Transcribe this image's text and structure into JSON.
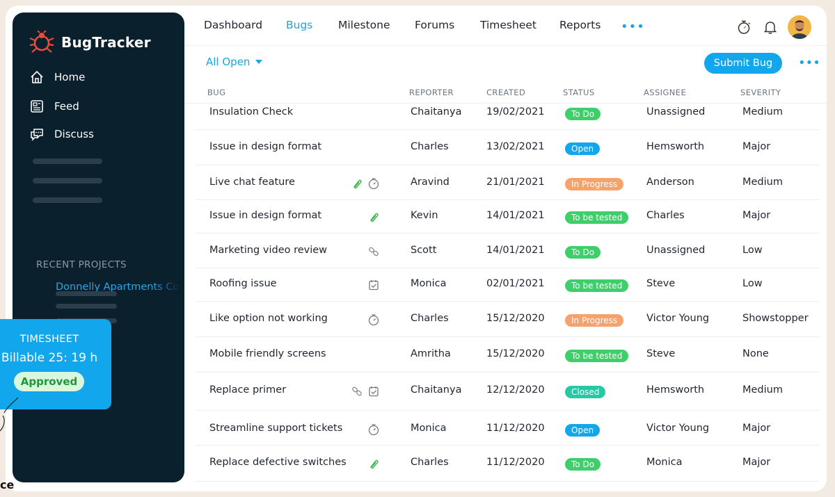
{
  "sidebar": {
    "brand": "BugTracker",
    "nav": [
      {
        "label": "Home",
        "icon": "home-icon"
      },
      {
        "label": "Feed",
        "icon": "feed-icon"
      },
      {
        "label": "Discuss",
        "icon": "discuss-icon"
      }
    ],
    "recent_title": "RECENT PROJECTS",
    "recent_projects": [
      "Donnelly Apartments Co"
    ]
  },
  "timesheet": {
    "title": "TIMESHEET",
    "billable": "Billable  25: 19 h",
    "status": "Approved"
  },
  "topnav": {
    "tabs": [
      "Dashboard",
      "Bugs",
      "Milestone",
      "Forums",
      "Timesheet",
      "Reports"
    ],
    "active_tab": "Bugs",
    "more": "•••"
  },
  "toolbar": {
    "filter": "All Open",
    "submit": "Submit Bug",
    "more": "•••"
  },
  "table": {
    "headers": [
      "BUG",
      "REPORTER",
      "CREATED",
      "STATUS",
      "ASSIGNEE",
      "SEVERITY"
    ],
    "rows": [
      {
        "bug": "Insulation Check",
        "reporter": "Chaitanya",
        "created": "19/02/2021",
        "status": "To Do",
        "assignee": "Unassigned",
        "severity": "Medium",
        "icons": []
      },
      {
        "bug": "Issue in design format",
        "reporter": "Charles",
        "created": "13/02/2021",
        "status": "Open",
        "assignee": "Hemsworth",
        "severity": "Major",
        "icons": []
      },
      {
        "bug": "Live chat feature",
        "reporter": "Aravind",
        "created": "21/01/2021",
        "status": "In Progress",
        "assignee": "Anderson",
        "severity": "Medium",
        "icons": [
          "attachment-icon",
          "timer-icon"
        ]
      },
      {
        "bug": "Issue in design format",
        "reporter": "Kevin",
        "created": "14/01/2021",
        "status": "To be tested",
        "assignee": "Charles",
        "severity": "Major",
        "icons": [
          "attachment-icon"
        ]
      },
      {
        "bug": "Marketing video review",
        "reporter": "Scott",
        "created": "14/01/2021",
        "status": "To Do",
        "assignee": "Unassigned",
        "severity": "Low",
        "icons": [
          "link-icon"
        ]
      },
      {
        "bug": "Roofing issue",
        "reporter": "Monica",
        "created": "02/01/2021",
        "status": "To be tested",
        "assignee": "Steve",
        "severity": "Low",
        "icons": [
          "task-icon"
        ]
      },
      {
        "bug": "Like option not working",
        "reporter": "Charles",
        "created": "15/12/2020",
        "status": "In Progress",
        "assignee": "Victor Young",
        "severity": "Showstopper",
        "icons": [
          "timer-icon"
        ]
      },
      {
        "bug": "Mobile friendly screens",
        "reporter": "Amritha",
        "created": "15/12/2020",
        "status": "To be tested",
        "assignee": "Steve",
        "severity": "None",
        "icons": []
      },
      {
        "bug": "Replace primer",
        "reporter": "Chaitanya",
        "created": "12/12/2020",
        "status": "Closed",
        "assignee": "Hemsworth",
        "severity": "Medium",
        "icons": [
          "link-icon",
          "task-icon"
        ]
      },
      {
        "bug": "Streamline support tickets",
        "reporter": "Monica",
        "created": "11/12/2020",
        "status": "Open",
        "assignee": "Victor Young",
        "severity": "Major",
        "icons": [
          "timer-icon"
        ]
      },
      {
        "bug": "Replace defective switches",
        "reporter": "Charles",
        "created": "11/12/2020",
        "status": "To Do",
        "assignee": "Monica",
        "severity": "Major",
        "icons": [
          "attachment-icon"
        ]
      }
    ]
  },
  "status_colors": {
    "To Do": "#3ecf6b",
    "Open": "#12a6ec",
    "In Progress": "#f6a26b",
    "To be tested": "#3ecf6b",
    "Closed": "#25c9a6"
  },
  "colors": {
    "accent": "#12a6ec",
    "sidebar": "#0b202d"
  }
}
